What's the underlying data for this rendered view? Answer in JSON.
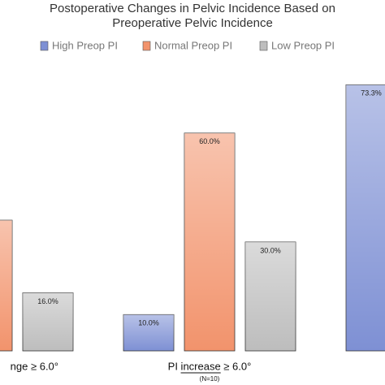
{
  "chart_data": {
    "type": "bar",
    "title_lines": [
      "Postoperative Changes in Pelvic Incidence Based on",
      "Preoperative Pelvic Incidence"
    ],
    "categories": [
      "nge ≥ 6.0°",
      "PI increase ≥ 6.0°",
      null
    ],
    "category_notes": [
      null,
      "(N=10)",
      null
    ],
    "series": [
      {
        "name": "High Preop PI",
        "color": "#7e90d4",
        "values": [
          null,
          10,
          73.3
        ],
        "value_labels": [
          null,
          "10.0%",
          "73.3%"
        ]
      },
      {
        "name": "Normal Preop PI",
        "color": "#f2936c",
        "values": [
          36,
          60,
          null
        ],
        "value_labels": [
          null,
          "60.0%",
          null
        ]
      },
      {
        "name": "Low Preop PI",
        "color": "#bdbdbd",
        "values": [
          16,
          30,
          null
        ],
        "value_labels": [
          "16.0%",
          "30.0%",
          null
        ]
      }
    ]
  }
}
